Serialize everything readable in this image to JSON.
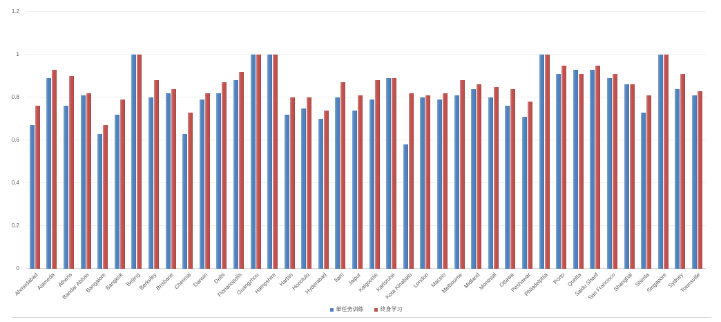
{
  "chart_data": {
    "type": "bar",
    "title": "",
    "xlabel": "",
    "ylabel": "",
    "ylim": [
      0,
      1.2
    ],
    "grid": "horizontal",
    "legend_position": "bottom-center",
    "yticks": [
      "0",
      "0.2",
      "0.4",
      "0.6",
      "0.8",
      "1",
      "1.2"
    ],
    "ytick_values": [
      0,
      0.2,
      0.4,
      0.6,
      0.8,
      1,
      1.2
    ],
    "categories": [
      "Ahmedabad",
      "Alameda",
      "Athens",
      "Bandar Abbas",
      "Bangalore",
      "Bangkok",
      "Beijing",
      "Berkeley",
      "Brisbane",
      "Chennai",
      "Darwin",
      "Delhi",
      "Florianopolis",
      "Guangzhou",
      "Hampshire",
      "Harbin",
      "Honolulu",
      "Hyderabad",
      "Ilam",
      "Jaipur",
      "Kalgoorlie",
      "Karlsruhe",
      "Kota Kinabalu",
      "London",
      "Maceio",
      "Melbourne",
      "Midland",
      "Montreal",
      "Ottawa",
      "Peshawar",
      "Philadelphia",
      "Porto",
      "Quetta",
      "Saidu Sharif",
      "San Francisco",
      "Shanghai",
      "Shimla",
      "Singapore",
      "Sydney",
      "Townsville"
    ],
    "series": [
      {
        "name": "单任务训练",
        "color": "#4F81BD",
        "color_light": "#84A8D0",
        "color_dark": "#3E689A",
        "values": [
          0.67,
          0.89,
          0.76,
          0.81,
          0.63,
          0.72,
          1.0,
          0.8,
          0.82,
          0.63,
          0.79,
          0.82,
          0.88,
          1.0,
          1.0,
          0.72,
          0.75,
          0.7,
          0.8,
          0.74,
          0.79,
          0.89,
          0.58,
          0.8,
          0.79,
          0.81,
          0.84,
          0.8,
          0.76,
          0.71,
          1.0,
          0.91,
          0.93,
          0.93,
          0.89,
          0.86,
          0.73,
          1.0,
          0.84,
          0.81
        ]
      },
      {
        "name": "终身学习",
        "color": "#C0504D",
        "color_light": "#D28B89",
        "color_dark": "#9C403E",
        "values": [
          0.76,
          0.93,
          0.9,
          0.82,
          0.67,
          0.79,
          1.0,
          0.88,
          0.84,
          0.73,
          0.82,
          0.87,
          0.92,
          1.0,
          1.0,
          0.8,
          0.8,
          0.74,
          0.87,
          0.81,
          0.88,
          0.89,
          0.82,
          0.81,
          0.82,
          0.88,
          0.86,
          0.85,
          0.84,
          0.78,
          1.0,
          0.95,
          0.91,
          0.95,
          0.91,
          0.86,
          0.81,
          1.0,
          0.91,
          0.83
        ]
      }
    ]
  },
  "style": {
    "gridline_color": "#EDEDED",
    "axis_line_color": "#D6D6D6",
    "tick_label_color": "#595959",
    "background": "#FFFFFF"
  }
}
